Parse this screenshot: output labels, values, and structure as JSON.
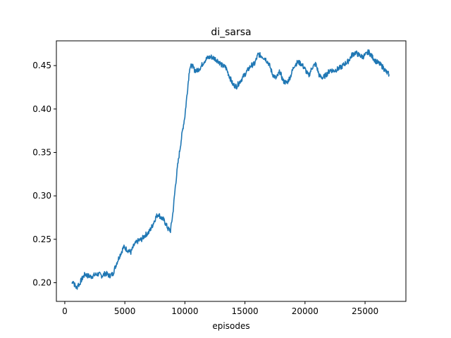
{
  "chart_data": {
    "type": "line",
    "title": "di_sarsa",
    "xlabel": "episodes",
    "ylabel": "",
    "xlim": [
      -700,
      28400
    ],
    "ylim": [
      0.1785,
      0.4785
    ],
    "xticks": [
      0,
      5000,
      10000,
      15000,
      20000,
      25000
    ],
    "xtick_labels": [
      "0",
      "5000",
      "10000",
      "15000",
      "20000",
      "25000"
    ],
    "yticks": [
      0.2,
      0.25,
      0.3,
      0.35,
      0.4,
      0.45
    ],
    "ytick_labels": [
      "0.20",
      "0.25",
      "0.30",
      "0.35",
      "0.40",
      "0.45"
    ],
    "grid": false,
    "series": [
      {
        "color": "#1f77b4",
        "x": [
          600,
          700,
          800,
          900,
          1000,
          1100,
          1200,
          1300,
          1500,
          1700,
          1900,
          2200,
          2500,
          2800,
          3100,
          3400,
          3700,
          4000,
          4300,
          4600,
          4900,
          5200,
          5500,
          5800,
          6100,
          6400,
          6700,
          7000,
          7300,
          7600,
          7800,
          8000,
          8200,
          8400,
          8600,
          8800,
          9000,
          9200,
          9400,
          9600,
          9800,
          10000,
          10200,
          10400,
          10600,
          10800,
          11000,
          11300,
          11600,
          11900,
          12200,
          12500,
          12800,
          13100,
          13400,
          13700,
          14000,
          14300,
          14600,
          14900,
          15200,
          15500,
          15800,
          16100,
          16400,
          16700,
          17000,
          17300,
          17600,
          17900,
          18200,
          18500,
          18800,
          19100,
          19400,
          19700,
          20000,
          20300,
          20600,
          20900,
          21200,
          21500,
          21800,
          22100,
          22400,
          22700,
          23000,
          23300,
          23600,
          23900,
          24200,
          24500,
          24800,
          25100,
          25300,
          25600,
          25900,
          26200,
          26500,
          26800,
          27000
        ],
        "values": [
          0.199,
          0.203,
          0.198,
          0.196,
          0.193,
          0.199,
          0.197,
          0.201,
          0.206,
          0.21,
          0.208,
          0.207,
          0.209,
          0.21,
          0.208,
          0.211,
          0.208,
          0.21,
          0.222,
          0.232,
          0.241,
          0.238,
          0.235,
          0.244,
          0.248,
          0.25,
          0.255,
          0.258,
          0.266,
          0.276,
          0.279,
          0.275,
          0.273,
          0.268,
          0.262,
          0.26,
          0.28,
          0.31,
          0.335,
          0.355,
          0.375,
          0.392,
          0.42,
          0.448,
          0.45,
          0.445,
          0.444,
          0.448,
          0.455,
          0.459,
          0.46,
          0.458,
          0.455,
          0.45,
          0.448,
          0.438,
          0.428,
          0.426,
          0.432,
          0.438,
          0.444,
          0.45,
          0.452,
          0.463,
          0.461,
          0.458,
          0.452,
          0.44,
          0.435,
          0.443,
          0.432,
          0.43,
          0.438,
          0.45,
          0.454,
          0.452,
          0.446,
          0.438,
          0.448,
          0.452,
          0.438,
          0.436,
          0.44,
          0.445,
          0.444,
          0.446,
          0.448,
          0.452,
          0.455,
          0.462,
          0.465,
          0.462,
          0.46,
          0.463,
          0.466,
          0.46,
          0.455,
          0.452,
          0.448,
          0.442,
          0.44
        ]
      }
    ]
  }
}
